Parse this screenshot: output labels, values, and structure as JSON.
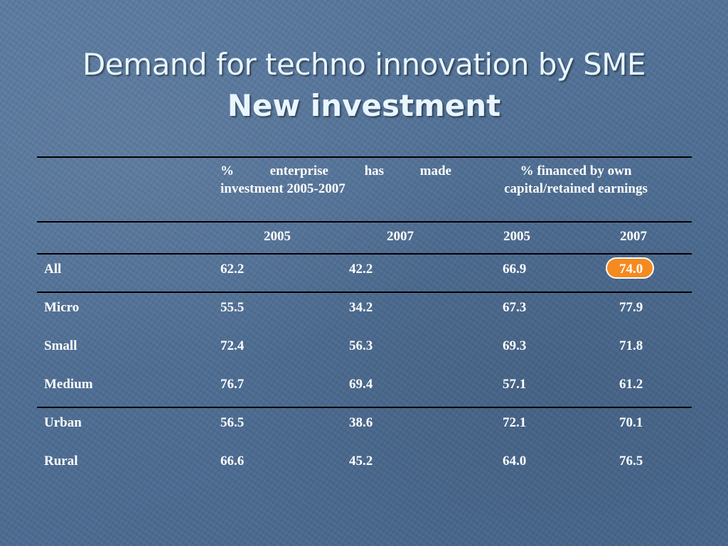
{
  "title": {
    "line1": "Demand for techno innovation by SME",
    "line2": "New investment"
  },
  "table": {
    "group_headers": {
      "investment_line1": "% enterprise has made",
      "investment_line2": "investment 2005-2007",
      "financed_line1": "% financed by own",
      "financed_line2": "capital/retained earnings"
    },
    "years": [
      "2005",
      "2007",
      "2005",
      "2007"
    ],
    "rows": [
      {
        "label": "All",
        "values": [
          "62.2",
          "42.2",
          "66.9",
          "74.0"
        ]
      },
      {
        "label": "Micro",
        "values": [
          "55.5",
          "34.2",
          "67.3",
          "77.9"
        ]
      },
      {
        "label": "Small",
        "values": [
          "72.4",
          "56.3",
          "69.3",
          "71.8"
        ]
      },
      {
        "label": "Medium",
        "values": [
          "76.7",
          "69.4",
          "57.1",
          "61.2"
        ]
      },
      {
        "label": "Urban",
        "values": [
          "56.5",
          "38.6",
          "72.1",
          "70.1"
        ]
      },
      {
        "label": "Rural",
        "values": [
          "66.6",
          "45.2",
          "64.0",
          "76.5"
        ]
      }
    ],
    "highlighted_cell_color": "#f58a1f"
  }
}
